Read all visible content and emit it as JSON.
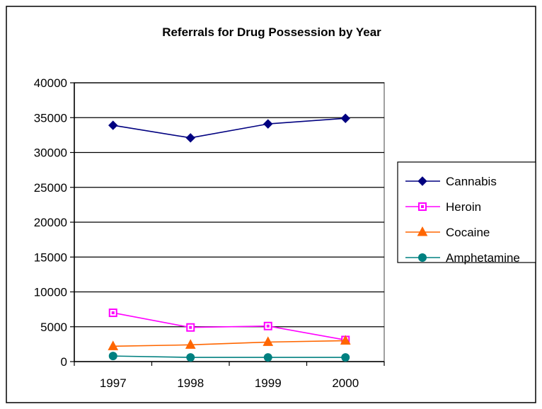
{
  "chart_data": {
    "type": "line",
    "title": "Referrals for Drug Possession by Year",
    "xlabel": "",
    "ylabel": "",
    "categories": [
      "1997",
      "1998",
      "1999",
      "2000"
    ],
    "ylim": [
      0,
      40000
    ],
    "yticks": [
      "0",
      "5000",
      "10000",
      "15000",
      "20000",
      "25000",
      "30000",
      "35000",
      "40000"
    ],
    "grid": "horizontal",
    "legend": "right",
    "series": [
      {
        "name": "Cannabis",
        "values": [
          33900,
          32100,
          34100,
          34900
        ],
        "color": "#000080",
        "marker": "diamond"
      },
      {
        "name": "Heroin",
        "values": [
          7000,
          4900,
          5100,
          3100
        ],
        "color": "#FF00FF",
        "marker": "square"
      },
      {
        "name": "Cocaine",
        "values": [
          2200,
          2400,
          2800,
          3000
        ],
        "color": "#FF6600",
        "marker": "triangle"
      },
      {
        "name": "Amphetamine",
        "values": [
          800,
          600,
          600,
          600
        ],
        "color": "#008080",
        "marker": "circle"
      }
    ]
  }
}
